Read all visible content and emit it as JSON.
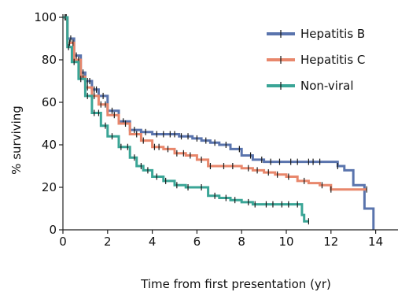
{
  "chart_data": {
    "type": "line",
    "title": "",
    "xlabel": "Time from first presentation (yr)",
    "ylabel": "% surviving",
    "xlim": [
      0,
      15
    ],
    "ylim": [
      0,
      100
    ],
    "x_ticks": [
      0,
      2,
      4,
      6,
      8,
      10,
      12,
      14
    ],
    "y_ticks": [
      0,
      20,
      40,
      60,
      80,
      100
    ],
    "grid": false,
    "legend": "top-right",
    "series": [
      {
        "name": "Hepatitis B",
        "color": "#5a74ad",
        "x": [
          0,
          0.2,
          0.5,
          0.8,
          1.0,
          1.3,
          1.6,
          2.0,
          2.5,
          3.0,
          3.5,
          4.0,
          4.7,
          5.2,
          5.8,
          6.2,
          6.6,
          7.0,
          7.5,
          8.0,
          8.5,
          9.0,
          10.0,
          11.0,
          11.5,
          12.3,
          12.6,
          13.0,
          13.5,
          13.9
        ],
        "y": [
          100,
          90,
          82,
          74,
          70,
          66,
          63,
          56,
          51,
          47,
          46,
          45,
          45,
          44,
          43,
          42,
          41,
          40,
          38,
          35,
          33,
          32,
          32,
          32,
          32,
          30,
          28,
          21,
          10,
          0
        ],
        "censor_x": [
          0.15,
          0.35,
          0.6,
          0.9,
          1.1,
          1.2,
          1.4,
          1.5,
          1.8,
          2.2,
          2.7,
          3.2,
          3.7,
          4.2,
          4.5,
          4.8,
          5.0,
          5.3,
          5.6,
          6.0,
          6.4,
          6.8,
          7.3,
          7.9,
          8.4,
          8.9,
          9.3,
          9.7,
          10.2,
          10.5,
          11.0,
          11.2,
          11.5,
          12.3
        ]
      },
      {
        "name": "Hepatitis C",
        "color": "#e8876c",
        "x": [
          0,
          0.2,
          0.5,
          0.8,
          1.0,
          1.3,
          1.6,
          2.0,
          2.5,
          3.0,
          3.5,
          4.0,
          4.5,
          5.0,
          5.5,
          6.0,
          6.5,
          7.0,
          7.5,
          8.0,
          8.5,
          9.0,
          9.5,
          10.0,
          10.5,
          11.0,
          11.5,
          12.0,
          13.0,
          13.6
        ],
        "y": [
          100,
          88,
          80,
          72,
          67,
          63,
          59,
          54,
          50,
          45,
          42,
          39,
          38,
          36,
          35,
          33,
          30,
          30,
          30,
          29,
          28,
          27,
          26,
          25,
          23,
          22,
          21,
          19,
          19,
          19
        ],
        "censor_x": [
          0.1,
          0.3,
          0.45,
          0.7,
          0.9,
          1.1,
          1.4,
          1.7,
          1.9,
          2.3,
          2.8,
          3.3,
          3.6,
          4.1,
          4.3,
          4.7,
          5.1,
          5.4,
          5.7,
          6.2,
          6.6,
          7.2,
          7.6,
          8.3,
          8.7,
          9.2,
          9.6,
          10.1,
          10.8,
          11.6,
          12.0,
          13.6
        ]
      },
      {
        "name": "Non-viral",
        "color": "#3aa596",
        "x": [
          0,
          0.2,
          0.4,
          0.7,
          1.0,
          1.3,
          1.7,
          2.0,
          2.5,
          3.0,
          3.3,
          3.6,
          4.0,
          4.5,
          5.0,
          5.5,
          6.0,
          6.5,
          7.0,
          7.5,
          8.0,
          8.5,
          9.0,
          9.5,
          10.0,
          10.5,
          10.7,
          10.8,
          11.0
        ],
        "y": [
          100,
          86,
          79,
          71,
          63,
          55,
          49,
          44,
          39,
          34,
          30,
          28,
          25,
          23,
          21,
          20,
          20,
          16,
          15,
          14,
          13,
          12,
          12,
          12,
          12,
          12,
          7,
          4,
          4
        ],
        "censor_x": [
          0.1,
          0.25,
          0.5,
          0.8,
          1.1,
          1.4,
          1.6,
          1.9,
          2.2,
          2.6,
          2.9,
          3.2,
          3.5,
          3.8,
          4.2,
          4.6,
          5.1,
          5.6,
          6.2,
          6.8,
          7.3,
          7.7,
          8.3,
          8.6,
          9.1,
          9.4,
          9.8,
          10.1,
          10.5,
          11.0
        ]
      }
    ]
  }
}
